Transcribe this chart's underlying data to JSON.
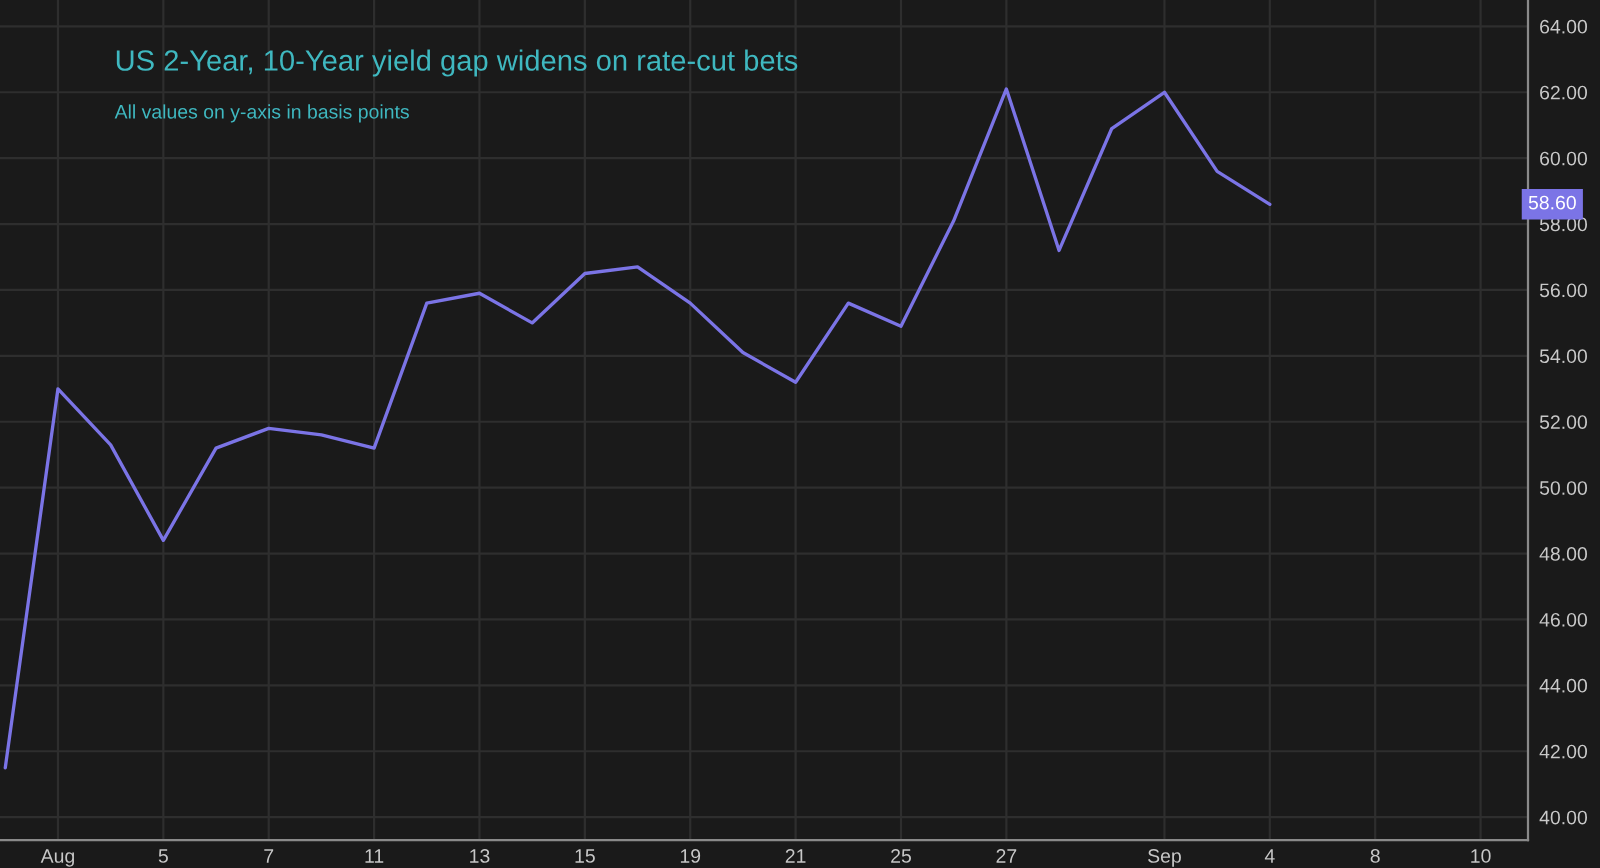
{
  "chart_data": {
    "type": "line",
    "title": "US 2-Year, 10-Year yield gap widens on rate-cut bets",
    "annotations": [
      "All values on y-axis in basis points",
      "58.60"
    ],
    "categories": [
      null,
      "Aug",
      null,
      "5",
      null,
      "7",
      null,
      "11",
      null,
      "13",
      null,
      "15",
      null,
      "19",
      null,
      "21",
      null,
      "25",
      null,
      "27",
      null,
      null,
      "Sep",
      null,
      "4",
      null,
      "8",
      null,
      "10"
    ],
    "series": [
      {
        "color": "#7b74e6",
        "values": [
          41.5,
          53.0,
          51.3,
          48.4,
          51.2,
          51.8,
          51.6,
          51.2,
          55.6,
          55.9,
          55.0,
          56.5,
          56.7,
          55.6,
          54.1,
          53.2,
          55.6,
          54.9,
          58.1,
          62.1,
          57.2,
          60.9,
          62.0,
          59.6,
          58.6,
          null,
          null,
          null,
          null
        ]
      }
    ],
    "ylim": [
      39.3,
      64.8
    ],
    "yticks": [
      {
        "value": 40,
        "label": "40.00"
      },
      {
        "value": 42,
        "label": "42.00"
      },
      {
        "value": 44,
        "label": "44.00"
      },
      {
        "value": 46,
        "label": "46.00"
      },
      {
        "value": 48,
        "label": "48.00"
      },
      {
        "value": 50,
        "label": "50.00"
      },
      {
        "value": 52,
        "label": "52.00"
      },
      {
        "value": 54,
        "label": "54.00"
      },
      {
        "value": 56,
        "label": "56.00"
      },
      {
        "value": 58,
        "label": "58.00"
      },
      {
        "value": 60,
        "label": "60.00"
      },
      {
        "value": 62,
        "label": "62.00"
      },
      {
        "value": 64,
        "label": "64.00"
      }
    ],
    "grid": true,
    "line_style": "solid"
  }
}
